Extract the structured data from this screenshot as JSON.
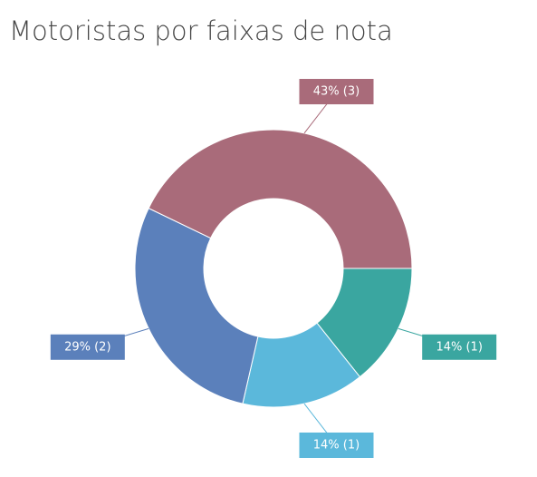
{
  "chart_data": {
    "type": "donut",
    "title": "Motoristas por faixas de nota",
    "values": [
      1,
      1,
      2,
      3
    ],
    "value_labels": [
      "14% (1)",
      "14% (1)",
      "29% (2)",
      "43% (3)"
    ],
    "colors": [
      "#3aa6a0",
      "#5bb8db",
      "#5b80bb",
      "#a96b7a"
    ]
  }
}
